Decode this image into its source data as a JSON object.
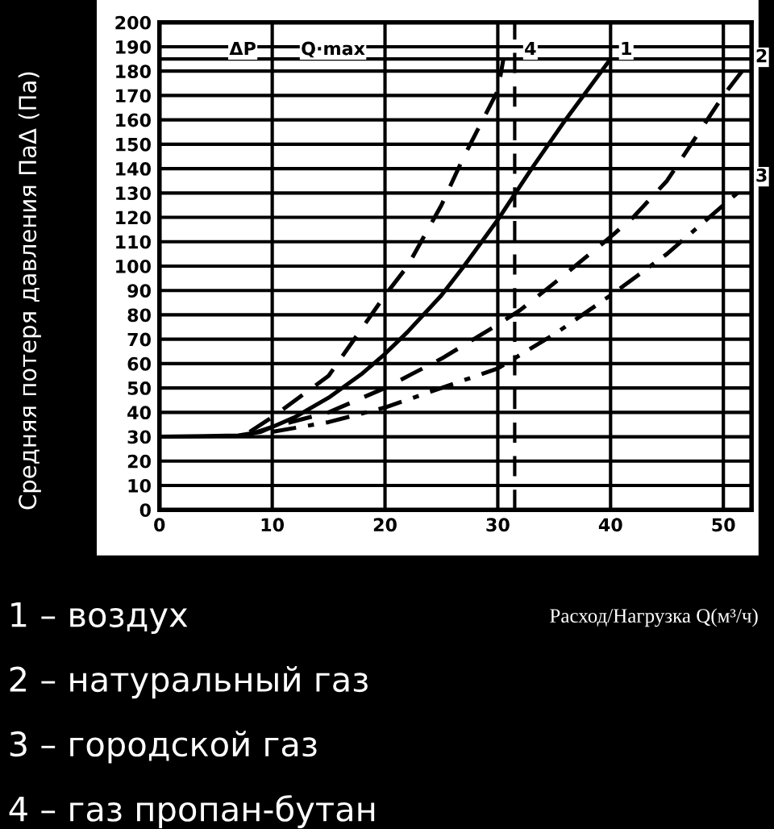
{
  "chart_data": {
    "type": "line",
    "xlabel": "Расход/Нагрузка Q(м³/ч)",
    "ylabel": "Средняя потеря давления ПаΔ (Па)",
    "xlim": [
      0,
      52.5
    ],
    "ylim": [
      0,
      200
    ],
    "xticks": [
      0,
      10,
      20,
      30,
      40,
      50
    ],
    "yticks": [
      0,
      10,
      20,
      30,
      40,
      50,
      60,
      70,
      80,
      90,
      100,
      110,
      120,
      130,
      140,
      150,
      160,
      170,
      180,
      190,
      200
    ],
    "grid": true,
    "marker": "none",
    "series": [
      {
        "color": "#000000",
        "line_style": "solid",
        "x": [
          0,
          7,
          9,
          10,
          12,
          15,
          18,
          20,
          22,
          25,
          27,
          30,
          33,
          36,
          40
        ],
        "values": [
          30,
          30.5,
          32,
          34,
          38,
          46,
          56,
          64,
          73,
          88,
          100,
          119,
          140,
          160,
          185
        ]
      },
      {
        "color": "#000000",
        "line_style": "dashed",
        "x": [
          8,
          10,
          15,
          20,
          25,
          30,
          32,
          35,
          40,
          42,
          45,
          50,
          52
        ],
        "values": [
          31,
          34,
          40,
          50,
          62,
          76,
          82,
          93,
          112,
          120,
          135,
          170,
          182
        ]
      },
      {
        "color": "#000000",
        "line_style": "dashdot",
        "x": [
          10,
          15,
          20,
          25,
          30,
          35,
          40,
          45,
          50,
          52
        ],
        "values": [
          32,
          36,
          42,
          50,
          58,
          72,
          88,
          105,
          125,
          133
        ]
      },
      {
        "color": "#000000",
        "line_style": "dashed",
        "x": [
          8,
          10,
          15,
          20,
          22,
          25,
          27,
          29,
          30,
          30.5
        ],
        "values": [
          32,
          38,
          55,
          88,
          100,
          125,
          145,
          163,
          172,
          185
        ]
      }
    ],
    "ref_lines": [
      {
        "axis": "y",
        "value": 185,
        "line_style": "solid"
      },
      {
        "axis": "x",
        "value": 31.5,
        "line_style": "dashed"
      }
    ],
    "annotations": [
      {
        "text": "ΔP",
        "x": 6,
        "y": 185
      },
      {
        "text": "Q·max",
        "x": 14,
        "y": 185
      },
      {
        "text": "1",
        "x": 40,
        "y": 185
      },
      {
        "text": "2",
        "x": 52,
        "y": 182
      },
      {
        "text": "3",
        "x": 52,
        "y": 133
      },
      {
        "text": "4",
        "x": 31.5,
        "y": 185
      },
      "1 – воздух",
      "2 – натуральный газ",
      "3 – городской газ",
      "4 – газ пропан-бутан"
    ]
  }
}
